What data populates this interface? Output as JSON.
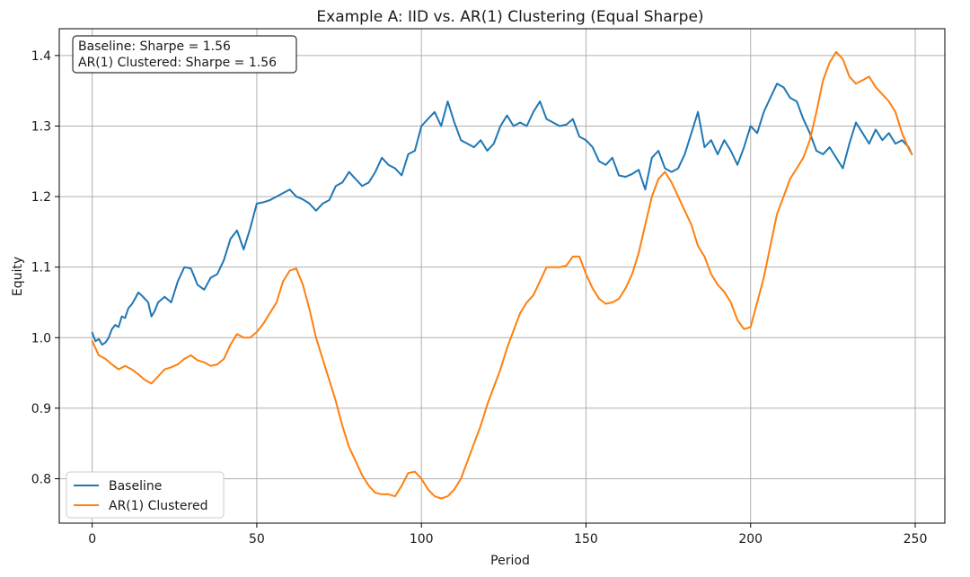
{
  "chart_data": {
    "type": "line",
    "title": "Example A: IID vs. AR(1) Clustering (Equal Sharpe)",
    "xlabel": "Period",
    "ylabel": "Equity",
    "xlim": [
      -10,
      259
    ],
    "ylim": [
      0.737,
      1.438
    ],
    "xticks": [
      0,
      50,
      100,
      150,
      200,
      250
    ],
    "xtick_labels": [
      "0",
      "50",
      "100",
      "150",
      "200",
      "250"
    ],
    "yticks": [
      0.8,
      0.9,
      1.0,
      1.1,
      1.2,
      1.3,
      1.4
    ],
    "ytick_labels": [
      "0.8",
      "0.9",
      "1.0",
      "1.1",
      "1.2",
      "1.3",
      "1.4"
    ],
    "grid": true,
    "annotation_lines": [
      "Baseline: Sharpe = 1.56",
      "AR(1) Clustered: Sharpe = 1.56"
    ],
    "legend_position": "lower-left",
    "series": [
      {
        "name": "Baseline",
        "color": "#1f77b4",
        "x": [
          0,
          1,
          2,
          3,
          4,
          5,
          6,
          7,
          8,
          9,
          10,
          11,
          12,
          13,
          14,
          15,
          16,
          17,
          18,
          19,
          20,
          22,
          24,
          26,
          28,
          30,
          32,
          34,
          36,
          38,
          40,
          42,
          44,
          46,
          48,
          50,
          52,
          54,
          56,
          58,
          60,
          62,
          64,
          66,
          68,
          70,
          72,
          74,
          76,
          78,
          80,
          82,
          84,
          86,
          88,
          90,
          92,
          94,
          96,
          98,
          100,
          102,
          104,
          106,
          108,
          110,
          112,
          114,
          116,
          118,
          120,
          122,
          124,
          126,
          128,
          130,
          132,
          134,
          136,
          138,
          140,
          142,
          144,
          146,
          148,
          150,
          152,
          154,
          156,
          158,
          160,
          162,
          164,
          166,
          168,
          170,
          172,
          174,
          176,
          178,
          180,
          182,
          184,
          186,
          188,
          190,
          192,
          194,
          196,
          198,
          200,
          202,
          204,
          206,
          208,
          210,
          212,
          214,
          216,
          218,
          220,
          222,
          224,
          226,
          228,
          230,
          232,
          234,
          236,
          238,
          240,
          242,
          244,
          246,
          248,
          249
        ],
        "values": [
          1.007,
          0.995,
          0.998,
          0.99,
          0.993,
          1.0,
          1.012,
          1.018,
          1.015,
          1.03,
          1.028,
          1.042,
          1.047,
          1.055,
          1.064,
          1.06,
          1.055,
          1.05,
          1.03,
          1.038,
          1.05,
          1.058,
          1.05,
          1.08,
          1.1,
          1.098,
          1.075,
          1.068,
          1.085,
          1.09,
          1.11,
          1.14,
          1.152,
          1.125,
          1.155,
          1.19,
          1.192,
          1.195,
          1.2,
          1.205,
          1.21,
          1.2,
          1.196,
          1.19,
          1.18,
          1.19,
          1.195,
          1.215,
          1.22,
          1.235,
          1.225,
          1.215,
          1.22,
          1.235,
          1.255,
          1.245,
          1.24,
          1.23,
          1.26,
          1.265,
          1.3,
          1.31,
          1.32,
          1.3,
          1.335,
          1.305,
          1.28,
          1.275,
          1.27,
          1.28,
          1.265,
          1.275,
          1.3,
          1.315,
          1.3,
          1.305,
          1.3,
          1.32,
          1.335,
          1.31,
          1.305,
          1.3,
          1.302,
          1.31,
          1.285,
          1.28,
          1.27,
          1.25,
          1.245,
          1.255,
          1.23,
          1.228,
          1.232,
          1.238,
          1.21,
          1.255,
          1.265,
          1.24,
          1.235,
          1.24,
          1.26,
          1.29,
          1.32,
          1.27,
          1.28,
          1.26,
          1.28,
          1.265,
          1.245,
          1.27,
          1.3,
          1.29,
          1.32,
          1.34,
          1.36,
          1.355,
          1.34,
          1.335,
          1.31,
          1.29,
          1.265,
          1.26,
          1.27,
          1.255,
          1.24,
          1.275,
          1.305,
          1.29,
          1.275,
          1.295,
          1.28,
          1.29,
          1.275,
          1.28,
          1.27,
          1.26
        ],
        "line_width": 2
      },
      {
        "name": "AR(1) Clustered",
        "color": "#ff7f0e",
        "x": [
          0,
          2,
          4,
          6,
          8,
          10,
          12,
          14,
          16,
          18,
          20,
          22,
          24,
          26,
          28,
          30,
          32,
          34,
          36,
          38,
          40,
          42,
          44,
          46,
          48,
          50,
          52,
          54,
          56,
          58,
          60,
          62,
          64,
          66,
          68,
          70,
          72,
          74,
          76,
          78,
          80,
          82,
          84,
          86,
          88,
          90,
          92,
          94,
          96,
          98,
          100,
          102,
          104,
          106,
          108,
          110,
          112,
          114,
          116,
          118,
          120,
          122,
          124,
          126,
          128,
          130,
          132,
          134,
          136,
          138,
          140,
          142,
          144,
          146,
          148,
          150,
          152,
          154,
          156,
          158,
          160,
          162,
          164,
          166,
          168,
          170,
          172,
          174,
          176,
          178,
          180,
          182,
          184,
          186,
          188,
          190,
          192,
          194,
          196,
          198,
          200,
          202,
          204,
          206,
          208,
          210,
          212,
          214,
          216,
          218,
          220,
          222,
          224,
          226,
          228,
          230,
          232,
          234,
          236,
          238,
          240,
          242,
          244,
          246,
          248,
          249
        ],
        "values": [
          0.995,
          0.975,
          0.97,
          0.962,
          0.955,
          0.96,
          0.955,
          0.948,
          0.94,
          0.935,
          0.945,
          0.955,
          0.958,
          0.962,
          0.97,
          0.975,
          0.968,
          0.965,
          0.96,
          0.962,
          0.97,
          0.99,
          1.005,
          1.0,
          1.0,
          1.008,
          1.02,
          1.035,
          1.05,
          1.08,
          1.095,
          1.098,
          1.075,
          1.04,
          1.0,
          0.97,
          0.94,
          0.91,
          0.875,
          0.845,
          0.825,
          0.805,
          0.79,
          0.78,
          0.778,
          0.778,
          0.775,
          0.79,
          0.808,
          0.81,
          0.8,
          0.785,
          0.775,
          0.772,
          0.775,
          0.785,
          0.8,
          0.825,
          0.85,
          0.875,
          0.905,
          0.93,
          0.955,
          0.985,
          1.01,
          1.035,
          1.05,
          1.06,
          1.08,
          1.1,
          1.1,
          1.1,
          1.102,
          1.115,
          1.115,
          1.09,
          1.07,
          1.055,
          1.048,
          1.05,
          1.055,
          1.07,
          1.09,
          1.12,
          1.16,
          1.2,
          1.225,
          1.235,
          1.22,
          1.2,
          1.18,
          1.16,
          1.13,
          1.115,
          1.09,
          1.075,
          1.065,
          1.05,
          1.025,
          1.012,
          1.015,
          1.05,
          1.085,
          1.13,
          1.175,
          1.2,
          1.225,
          1.24,
          1.255,
          1.28,
          1.32,
          1.365,
          1.39,
          1.405,
          1.395,
          1.37,
          1.36,
          1.365,
          1.37,
          1.355,
          1.345,
          1.335,
          1.32,
          1.29,
          1.268,
          1.26
        ],
        "line_width": 2
      }
    ]
  }
}
